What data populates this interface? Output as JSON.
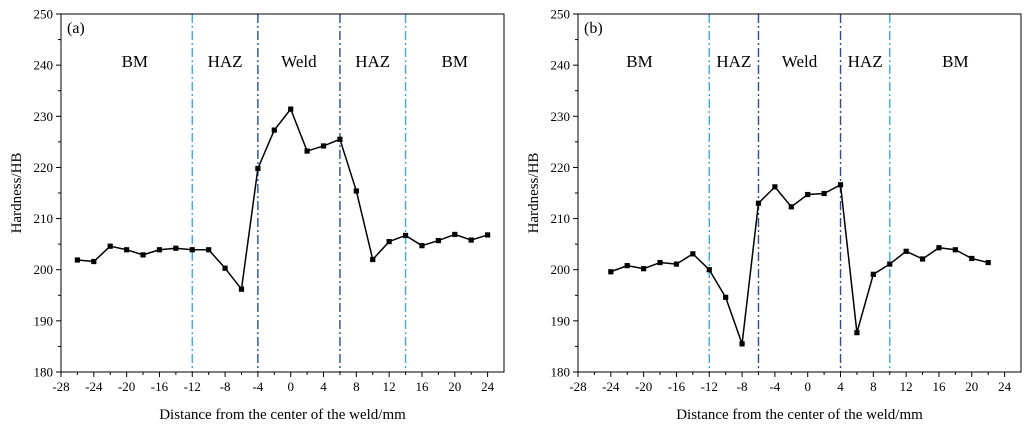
{
  "chart_data": [
    {
      "type": "line",
      "panel_label": "(a)",
      "xlabel": "Distance from the center of the weld/mm",
      "ylabel": "Hardness/HB",
      "xlim": [
        -28,
        26
      ],
      "ylim": [
        180,
        250
      ],
      "xticks": [
        -28,
        -24,
        -20,
        -16,
        -12,
        -8,
        -4,
        0,
        4,
        8,
        12,
        16,
        20,
        24
      ],
      "yticks": [
        180,
        190,
        200,
        210,
        220,
        230,
        240,
        250
      ],
      "grid": false,
      "series": [
        {
          "x": [
            -26,
            -24,
            -22,
            -20,
            -18,
            -16,
            -14,
            -12,
            -10,
            -8,
            -6,
            -4,
            -2,
            0,
            2,
            4,
            6,
            8,
            10,
            12,
            14,
            16,
            18,
            20,
            22,
            24
          ],
          "y": [
            201.9,
            201.6,
            204.6,
            203.9,
            202.9,
            203.9,
            204.2,
            203.9,
            203.9,
            200.3,
            196.2,
            219.8,
            227.3,
            231.4,
            223.2,
            224.2,
            225.5,
            215.4,
            202.0,
            205.5,
            206.7,
            204.7,
            205.7,
            206.9,
            205.8,
            206.8
          ],
          "color": "#000000",
          "marker": "square"
        }
      ],
      "boundaries": [
        {
          "x": -12,
          "style": "dashdot",
          "color": "#3fa9dd"
        },
        {
          "x": -4,
          "style": "dashdot",
          "color": "#2a4e8c"
        },
        {
          "x": 6,
          "style": "dashdot",
          "color": "#2a4e8c"
        },
        {
          "x": 14,
          "style": "dashdot",
          "color": "#3fa9dd"
        }
      ],
      "regions": [
        {
          "label": "BM",
          "x": -19
        },
        {
          "label": "HAZ",
          "x": -8
        },
        {
          "label": "Weld",
          "x": 1
        },
        {
          "label": "HAZ",
          "x": 10
        },
        {
          "label": "BM",
          "x": 20
        }
      ]
    },
    {
      "type": "line",
      "panel_label": "(b)",
      "xlabel": "Distance from the center of the weld/mm",
      "ylabel": "Hardness/HB",
      "xlim": [
        -28,
        26
      ],
      "ylim": [
        180,
        250
      ],
      "xticks": [
        -28,
        -24,
        -20,
        -16,
        -12,
        -8,
        -4,
        0,
        4,
        8,
        12,
        16,
        20,
        24
      ],
      "yticks": [
        180,
        190,
        200,
        210,
        220,
        230,
        240,
        250
      ],
      "grid": false,
      "series": [
        {
          "x": [
            -24,
            -22,
            -20,
            -18,
            -16,
            -14,
            -12,
            -10,
            -8,
            -6,
            -4,
            -2,
            0,
            2,
            4,
            6,
            8,
            10,
            12,
            14,
            16,
            18,
            20,
            22
          ],
          "y": [
            199.6,
            200.8,
            200.2,
            201.4,
            201.1,
            203.1,
            200.0,
            194.6,
            185.5,
            213.0,
            216.2,
            212.3,
            214.7,
            214.9,
            216.6,
            187.7,
            199.1,
            201.1,
            203.6,
            202.1,
            204.3,
            203.9,
            202.2,
            201.4
          ],
          "color": "#000000",
          "marker": "square"
        }
      ],
      "boundaries": [
        {
          "x": -12,
          "style": "dashdot",
          "color": "#3fa9dd"
        },
        {
          "x": -6,
          "style": "dashdot",
          "color": "#2a4e8c"
        },
        {
          "x": 4,
          "style": "dashdot",
          "color": "#2a4e8c"
        },
        {
          "x": 10,
          "style": "dashdot",
          "color": "#3fa9dd"
        }
      ],
      "regions": [
        {
          "label": "BM",
          "x": -20.5
        },
        {
          "label": "HAZ",
          "x": -9
        },
        {
          "label": "Weld",
          "x": -1
        },
        {
          "label": "HAZ",
          "x": 7
        },
        {
          "label": "BM",
          "x": 18
        }
      ]
    }
  ]
}
